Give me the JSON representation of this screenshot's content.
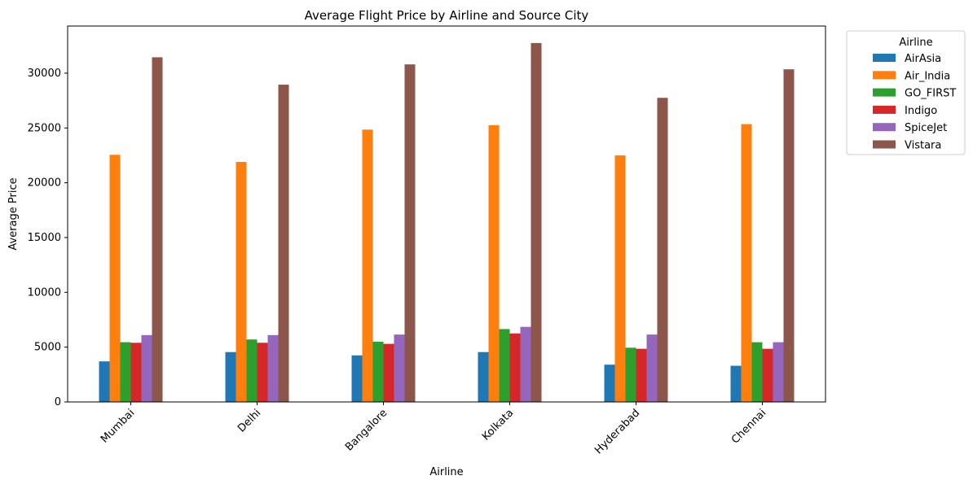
{
  "chart_data": {
    "type": "bar",
    "title": "Average Flight Price by Airline and Source City",
    "xlabel": "Airline",
    "ylabel": "Average Price",
    "ylim": [
      0,
      34300
    ],
    "yticks": [
      0,
      5000,
      10000,
      15000,
      20000,
      25000,
      30000
    ],
    "categories": [
      "Mumbai",
      "Delhi",
      "Bangalore",
      "Kolkata",
      "Hyderabad",
      "Chennai"
    ],
    "legend": {
      "title": "Airline",
      "placement": "outside-top-right"
    },
    "grid": false,
    "series": [
      {
        "name": "AirAsia",
        "color": "#1f77b4",
        "values": [
          3700,
          4550,
          4250,
          4550,
          3400,
          3300
        ]
      },
      {
        "name": "Air_India",
        "color": "#ff7f0e",
        "values": [
          22550,
          21900,
          24850,
          25250,
          22500,
          25350
        ]
      },
      {
        "name": "GO_FIRST",
        "color": "#2ca02c",
        "values": [
          5450,
          5700,
          5500,
          6650,
          4950,
          5450
        ]
      },
      {
        "name": "Indigo",
        "color": "#d62728",
        "values": [
          5400,
          5400,
          5300,
          6250,
          4850,
          4850
        ]
      },
      {
        "name": "SpiceJet",
        "color": "#9467bd",
        "values": [
          6100,
          6100,
          6150,
          6850,
          6150,
          5450
        ]
      },
      {
        "name": "Vistara",
        "color": "#8c564b",
        "values": [
          31450,
          28950,
          30800,
          32750,
          27750,
          30350
        ]
      }
    ]
  }
}
